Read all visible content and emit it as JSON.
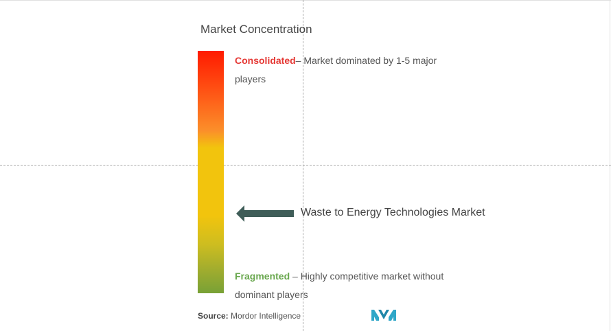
{
  "chart_data": {
    "type": "market-concentration-scale",
    "title": "Market Concentration",
    "scale": {
      "top": {
        "label": "Consolidated",
        "description": "– Market dominated by 1-5 major players",
        "color": "#e53935"
      },
      "bottom": {
        "label": "Fragmented",
        "description": " – Highly competitive market without dominant players",
        "color": "#6aa84f"
      }
    },
    "marker": {
      "label": "Waste to Energy Technologies Market",
      "position_fraction_from_top": 0.67
    },
    "source": {
      "label": "Source:",
      "value": "Mordor Intelligence"
    }
  },
  "logo": {
    "icon": "mordor-intelligence-logo-icon",
    "color": "#2fa7c8"
  }
}
